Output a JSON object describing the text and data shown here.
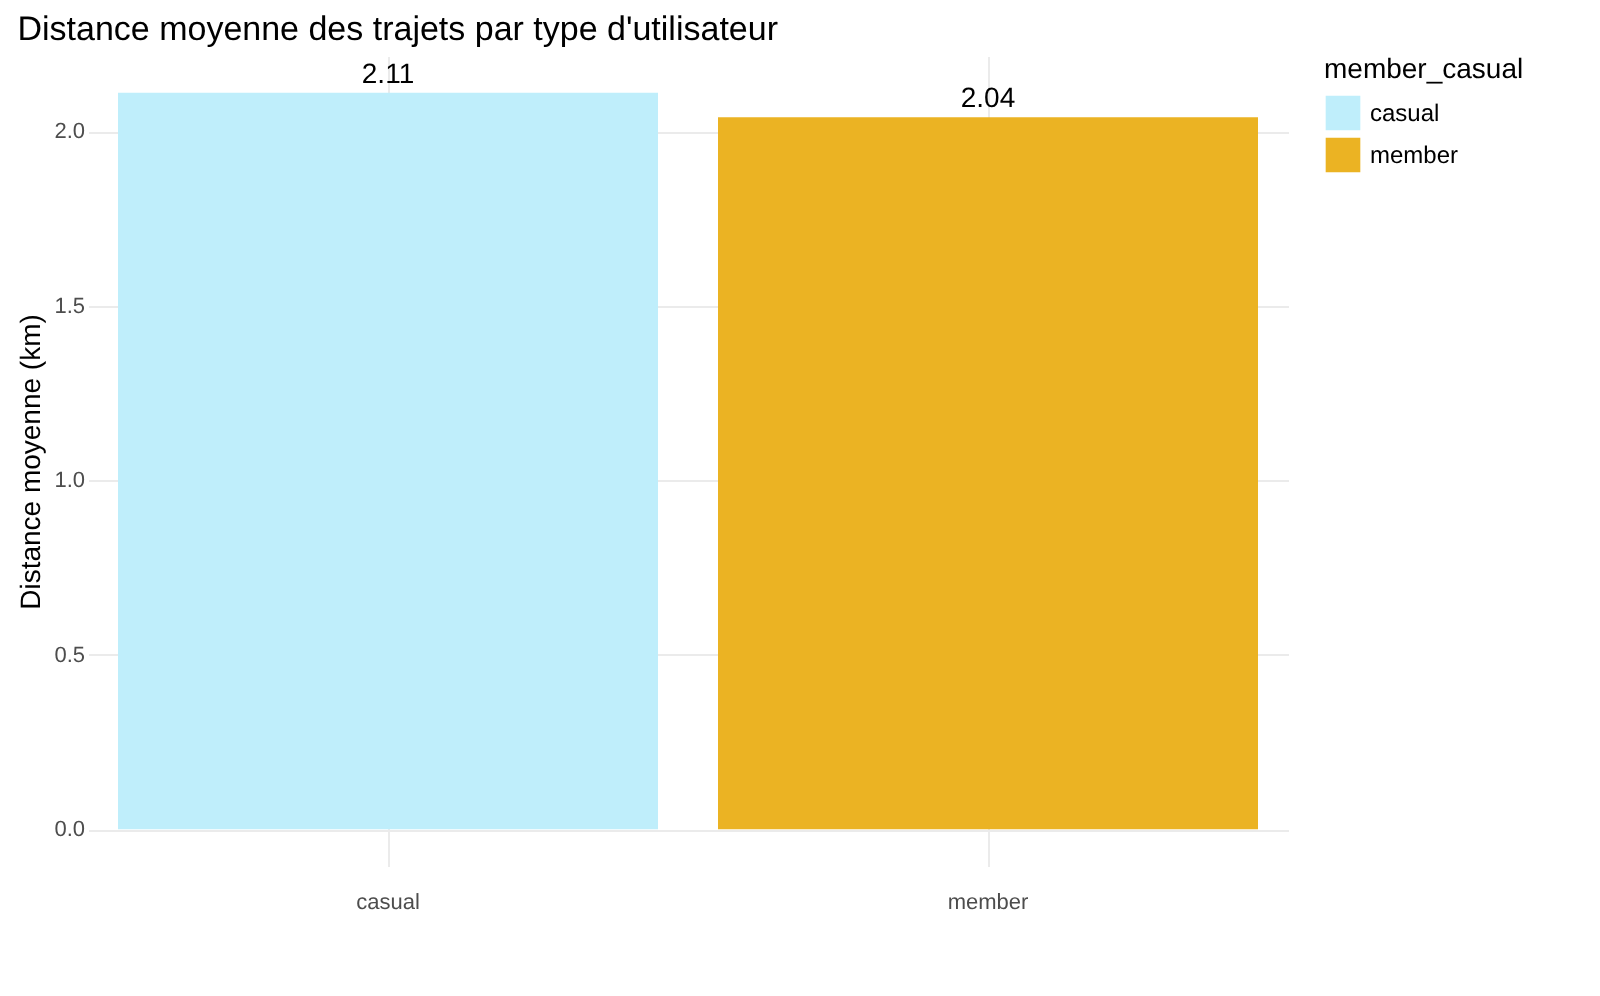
{
  "chart_data": {
    "type": "bar",
    "title": "Distance moyenne des trajets par type d'utilisateur",
    "ylabel": "Distance moyenne (km)",
    "legend_title": "member_casual",
    "categories": [
      "casual",
      "member"
    ],
    "series": [
      {
        "name": "casual",
        "color": "#bfeefb",
        "values": [
          2.11,
          null
        ]
      },
      {
        "name": "member",
        "color": "#ebb323",
        "values": [
          null,
          2.04
        ]
      }
    ],
    "data_labels": true,
    "ylim": [
      -0.1055,
      2.2155
    ],
    "yticks": [
      {
        "value": 0,
        "label": "0.0"
      },
      {
        "value": 0.5,
        "label": "0.5"
      },
      {
        "value": 1,
        "label": "1.0"
      },
      {
        "value": 1.5,
        "label": "1.5"
      },
      {
        "value": 2,
        "label": "2.0"
      }
    ],
    "grid": true,
    "legend": "right"
  }
}
